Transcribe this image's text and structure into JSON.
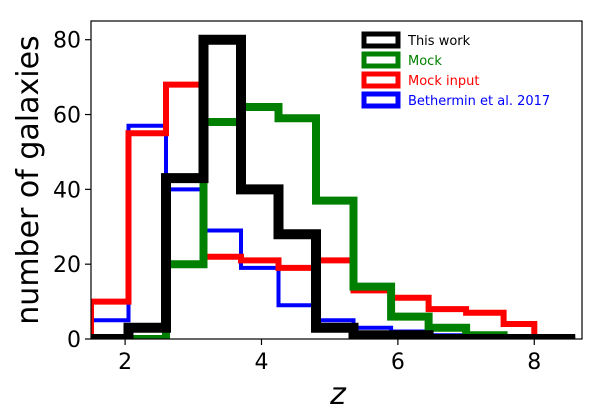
{
  "chart_data": {
    "type": "histogram",
    "title": "",
    "xlabel": "z",
    "ylabel": "number of galaxies",
    "xlim": [
      1.5,
      8.7
    ],
    "ylim": [
      0,
      85
    ],
    "xticks": [
      "2",
      "4",
      "6",
      "8"
    ],
    "yticks": [
      "0",
      "20",
      "40",
      "60",
      "80"
    ],
    "grid": false,
    "legend_position": "top-right",
    "series": [
      {
        "name": "This work",
        "color": "#000000",
        "edges": [
          1.5,
          2.05,
          2.6,
          3.15,
          3.7,
          4.25,
          4.8,
          5.35,
          5.9,
          6.45,
          7.0,
          7.55,
          8.1,
          8.6
        ],
        "values": [
          0,
          3,
          43,
          80,
          40,
          28,
          3,
          1,
          1,
          0,
          0,
          0,
          0
        ]
      },
      {
        "name": "Mock",
        "color": "#008000",
        "edges": [
          1.5,
          2.05,
          2.6,
          3.15,
          3.7,
          4.25,
          4.8,
          5.35,
          5.9,
          6.45,
          7.0,
          7.55,
          8.1,
          8.6
        ],
        "values": [
          0,
          0,
          20,
          58,
          62,
          59,
          37,
          14,
          6,
          3,
          1,
          0,
          0
        ]
      },
      {
        "name": "Mock input",
        "color": "#ff0000",
        "edges": [
          1.5,
          2.05,
          2.6,
          3.15,
          3.7,
          4.25,
          4.8,
          5.35,
          5.9,
          6.45,
          7.0,
          7.55,
          8.0
        ],
        "values": [
          10,
          55,
          68,
          22,
          21,
          19,
          21,
          13,
          11,
          8,
          7,
          4
        ]
      },
      {
        "name": "Bethermin et al. 2017",
        "color": "#0000ff",
        "edges": [
          1.5,
          2.05,
          2.6,
          3.15,
          3.7,
          4.25,
          4.8,
          5.35,
          5.9,
          6.45,
          7.0,
          7.55,
          8.1,
          8.6
        ],
        "values": [
          5,
          57,
          40,
          29,
          19,
          9,
          5,
          3,
          2,
          1,
          1,
          0,
          0
        ]
      }
    ]
  }
}
